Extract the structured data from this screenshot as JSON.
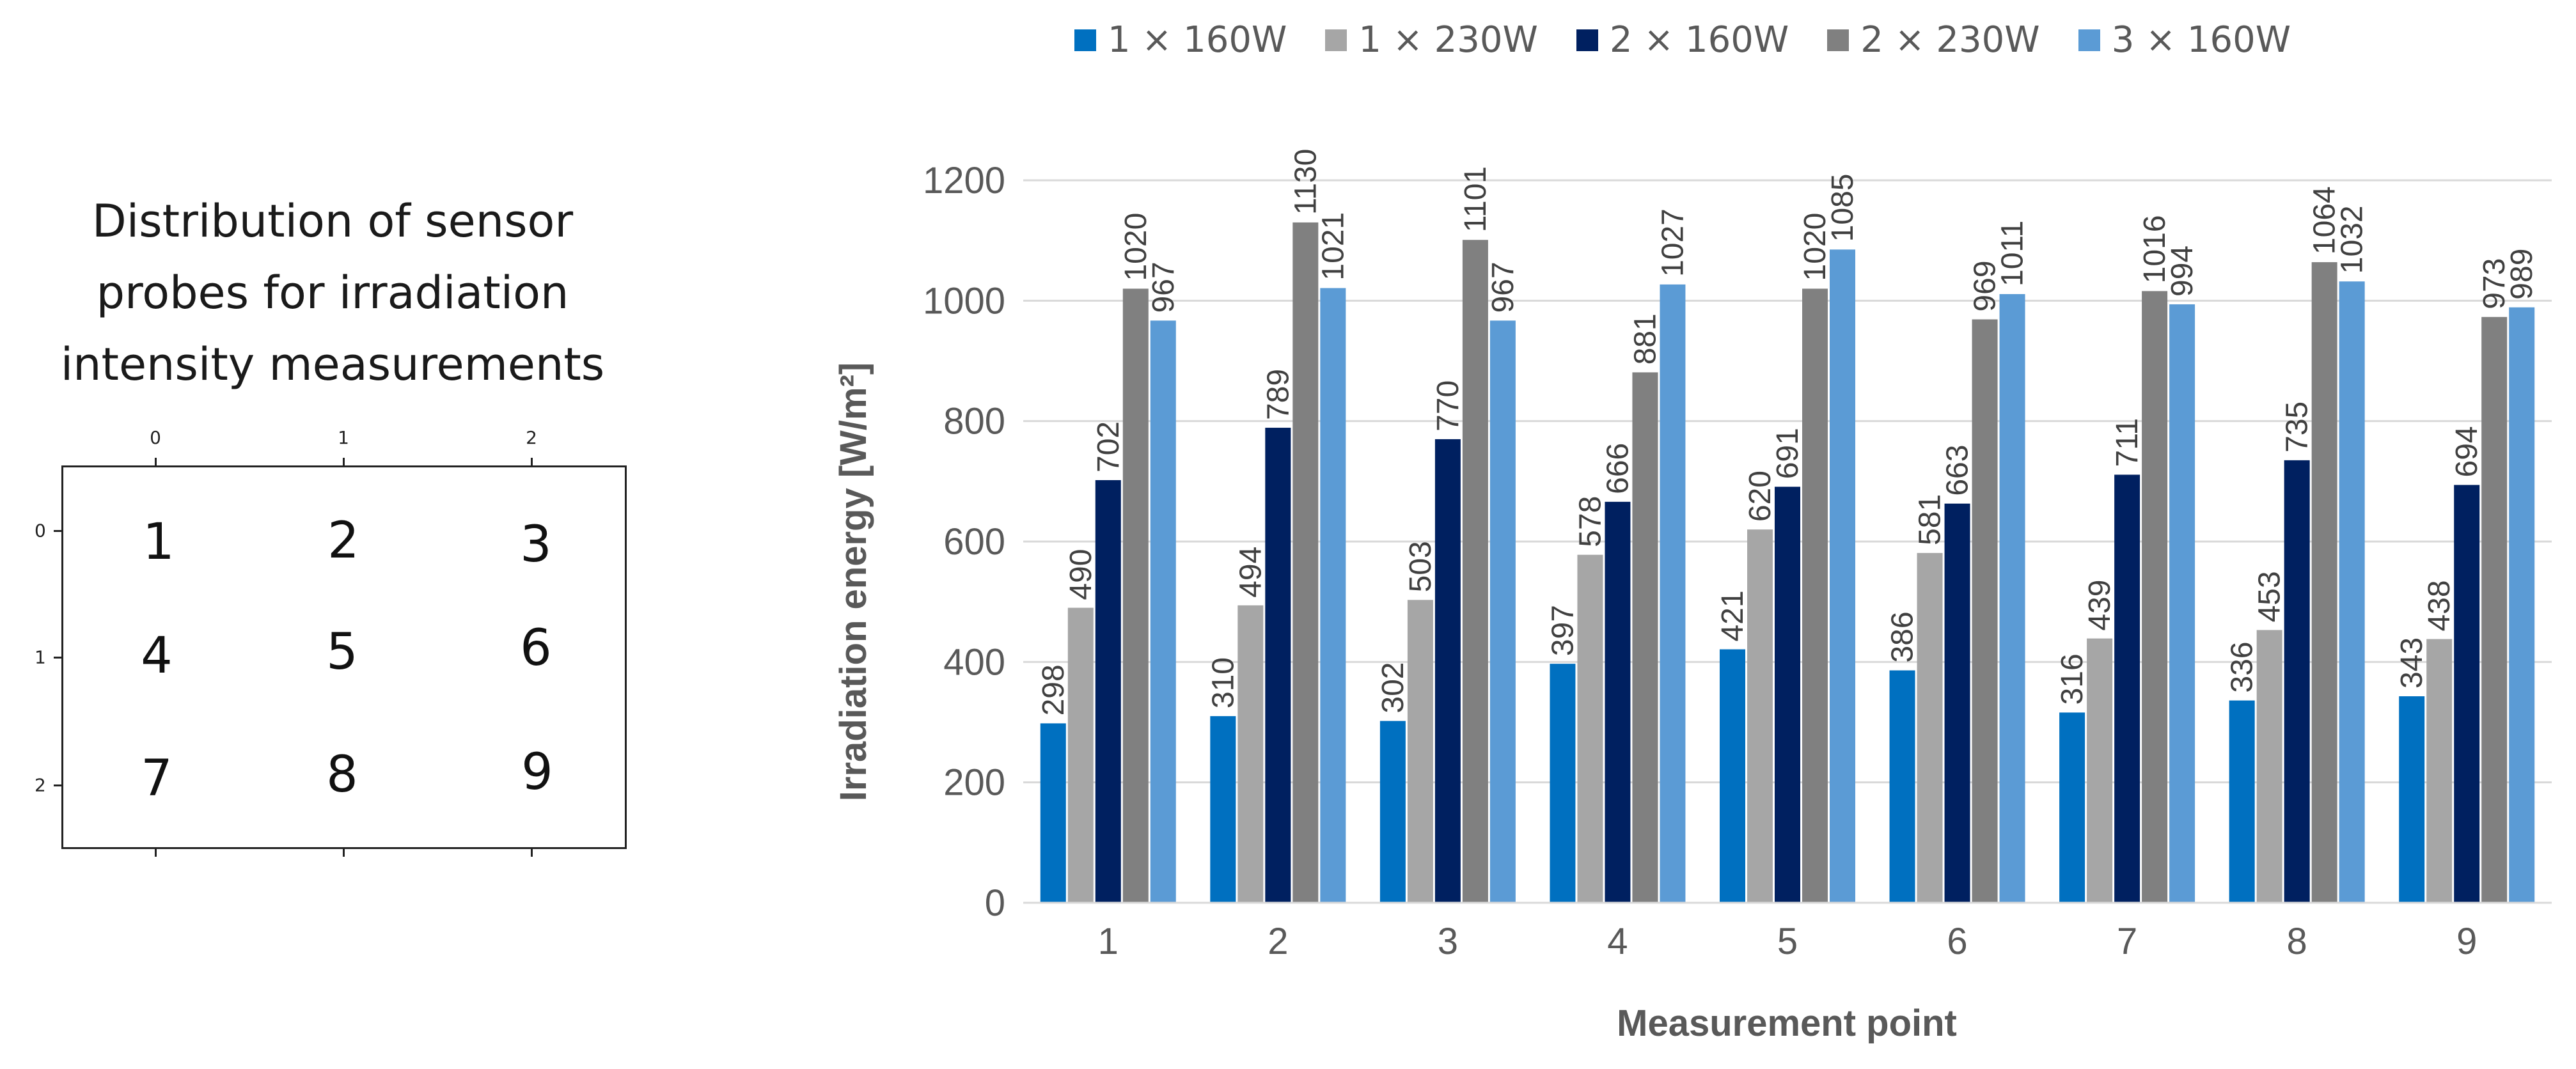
{
  "layout_panel": {
    "title_lines": [
      "Distribution of sensor",
      "probes for irradiation",
      "intensity measurements"
    ],
    "x_ticks": [
      "0",
      "1",
      "2"
    ],
    "y_ticks": [
      "0",
      "1",
      "2"
    ],
    "points": [
      "1",
      "2",
      "3",
      "4",
      "5",
      "6",
      "7",
      "8",
      "9"
    ]
  },
  "legend": [
    {
      "label": "1 × 160W",
      "color": "#0070C0"
    },
    {
      "label": "1 × 230W",
      "color": "#A6A6A6"
    },
    {
      "label": "2 × 160W",
      "color": "#002060"
    },
    {
      "label": "2 × 230W",
      "color": "#808080"
    },
    {
      "label": "3 × 160W",
      "color": "#5B9BD5"
    }
  ],
  "chart_data": {
    "type": "bar",
    "title": "",
    "xlabel": "Measurement point",
    "ylabel": "Irradiation energy [W/m²]",
    "ylim": [
      0,
      1200
    ],
    "yticks": [
      "0",
      "200",
      "400",
      "600",
      "800",
      "1000",
      "1200"
    ],
    "grid": true,
    "legend_position": "top",
    "categories": [
      "1",
      "2",
      "3",
      "4",
      "5",
      "6",
      "7",
      "8",
      "9"
    ],
    "series": [
      {
        "name": "1 × 160W",
        "color": "#0070C0",
        "values": [
          298,
          310,
          302,
          397,
          421,
          386,
          316,
          336,
          343
        ]
      },
      {
        "name": "1 × 230W",
        "color": "#A6A6A6",
        "values": [
          490,
          494,
          503,
          578,
          620,
          581,
          439,
          453,
          438
        ]
      },
      {
        "name": "2 × 160W",
        "color": "#002060",
        "values": [
          702,
          789,
          770,
          666,
          691,
          663,
          711,
          735,
          694
        ]
      },
      {
        "name": "2 × 230W",
        "color": "#808080",
        "values": [
          1020,
          1130,
          1101,
          881,
          1020,
          969,
          1016,
          1064,
          973
        ]
      },
      {
        "name": "3 × 160W",
        "color": "#5B9BD5",
        "values": [
          967,
          1021,
          967,
          1027,
          1085,
          1011,
          994,
          1032,
          989
        ]
      }
    ]
  }
}
